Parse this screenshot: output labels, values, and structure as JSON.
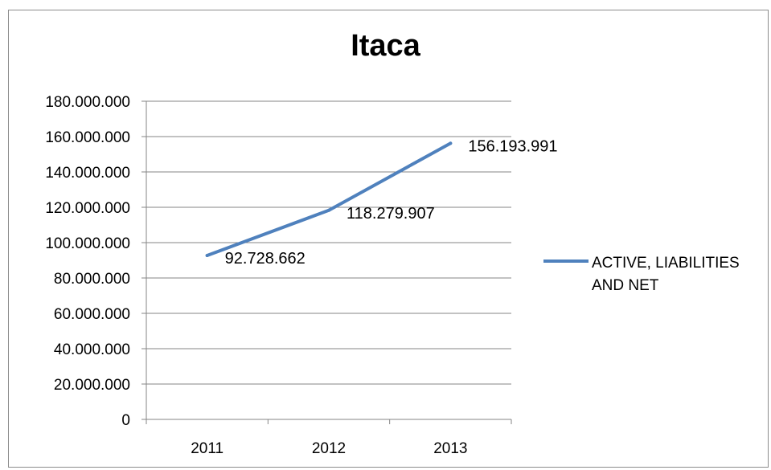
{
  "chart_data": {
    "type": "line",
    "title": "Itaca",
    "categories": [
      "2011",
      "2012",
      "2013"
    ],
    "series": [
      {
        "name": "ACTIVE, LIABILITIES AND NET",
        "values": [
          92728662,
          118279907,
          156193991
        ],
        "labels": [
          "92.728.662",
          "118.279.907",
          "156.193.991"
        ],
        "color": "#4f81bd"
      }
    ],
    "ylim": [
      0,
      180000000
    ],
    "y_ticks": [
      0,
      20000000,
      40000000,
      60000000,
      80000000,
      100000000,
      120000000,
      140000000,
      160000000,
      180000000
    ],
    "y_tick_labels": [
      "0",
      "20.000.000",
      "40.000.000",
      "60.000.000",
      "80.000.000",
      "100.000.000",
      "120.000.000",
      "140.000.000",
      "160.000.000",
      "180.000.000"
    ],
    "grid": true,
    "legend_position": "right",
    "xlabel": "",
    "ylabel": ""
  }
}
